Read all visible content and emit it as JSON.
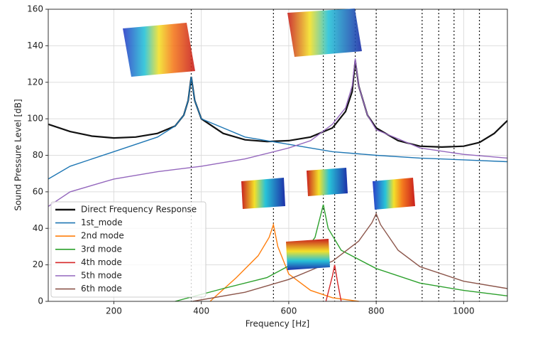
{
  "chart_data": {
    "type": "line",
    "xlabel": "Frequency [Hz]",
    "ylabel": "Sound Pressure Level [dB]",
    "xlim": [
      50,
      1100
    ],
    "xticks": [
      200,
      400,
      600,
      800,
      1000
    ],
    "ylim": [
      0,
      160
    ],
    "yticks": [
      0,
      20,
      40,
      60,
      80,
      100,
      120,
      140,
      160
    ],
    "grid": true,
    "legend": "lower left",
    "vlines": [
      377,
      565,
      679,
      705,
      752,
      800,
      905,
      943,
      978,
      1036
    ],
    "series": [
      {
        "name": "Direct Frequency Response",
        "color": "#111111",
        "x": [
          50,
          100,
          150,
          200,
          250,
          300,
          340,
          360,
          370,
          377,
          385,
          400,
          450,
          500,
          550,
          600,
          650,
          700,
          730,
          745,
          752,
          760,
          780,
          800,
          850,
          900,
          950,
          1000,
          1036,
          1070,
          1100
        ],
        "values": [
          97,
          93,
          90.5,
          89.5,
          90,
          92,
          96,
          102,
          110,
          123,
          110,
          100,
          92,
          88.5,
          87.5,
          88,
          90,
          95,
          104,
          115,
          132,
          118,
          102,
          95,
          88,
          85,
          84.5,
          85,
          87,
          92,
          99
        ]
      },
      {
        "name": "1st_mode",
        "color": "#1f77b4",
        "x": [
          50,
          100,
          200,
          300,
          340,
          360,
          370,
          377,
          385,
          400,
          500,
          600,
          700,
          800,
          900,
          1000,
          1100
        ],
        "values": [
          67,
          74,
          82,
          90,
          96,
          102,
          110,
          123,
          110,
          100,
          90,
          86,
          82,
          80,
          78.5,
          77.5,
          76.5
        ]
      },
      {
        "name": "2nd mode",
        "color": "#ff7f0e",
        "x": [
          420,
          480,
          530,
          555,
          565,
          575,
          600,
          650,
          700,
          760
        ],
        "values": [
          0,
          13,
          25,
          35,
          42,
          30,
          15,
          6,
          2,
          0
        ]
      },
      {
        "name": "3rd mode",
        "color": "#2ca02c",
        "x": [
          340,
          450,
          550,
          620,
          660,
          679,
          690,
          720,
          800,
          900,
          1000,
          1100
        ],
        "values": [
          0,
          7,
          13,
          22,
          35,
          53,
          40,
          28,
          18,
          10,
          6,
          3
        ]
      },
      {
        "name": "4th mode",
        "color": "#d62728",
        "x": [
          685,
          700,
          705,
          712,
          720
        ],
        "values": [
          0,
          14,
          20,
          10,
          0
        ]
      },
      {
        "name": "5th mode",
        "color": "#9467bd",
        "x": [
          50,
          100,
          200,
          300,
          400,
          500,
          600,
          650,
          700,
          730,
          745,
          752,
          760,
          780,
          800,
          900,
          1000,
          1100
        ],
        "values": [
          52,
          60,
          67,
          71,
          74,
          78,
          84,
          88,
          97,
          106,
          118,
          133,
          118,
          102,
          94,
          84,
          80.5,
          78.5
        ]
      },
      {
        "name": "6th mode",
        "color": "#8c564b",
        "x": [
          380,
          500,
          600,
          700,
          760,
          790,
          800,
          810,
          850,
          900,
          1000,
          1100
        ],
        "values": [
          0,
          5,
          12,
          22,
          33,
          43,
          48,
          42,
          28,
          19,
          11,
          7
        ]
      }
    ]
  }
}
